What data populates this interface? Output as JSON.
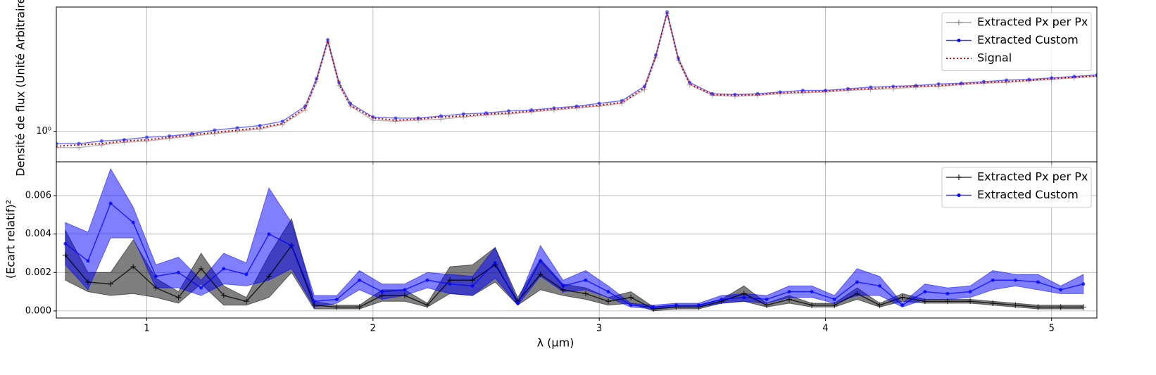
{
  "chart_data": [
    {
      "type": "line",
      "ylabel": "Densité de flux (Unité Arbitraire)",
      "log_y": true,
      "grid": true,
      "legend": "upper right",
      "xlim": [
        0.6,
        5.2
      ],
      "xticks": [
        1,
        2,
        3,
        4,
        5
      ],
      "ylim": [
        0.77,
        2.9
      ],
      "yticks": [
        {
          "value": 1,
          "label": "10⁰"
        }
      ],
      "x": [
        0.6,
        0.7,
        0.8,
        0.9,
        1.0,
        1.1,
        1.2,
        1.3,
        1.4,
        1.5,
        1.6,
        1.7,
        1.75,
        1.8,
        1.85,
        1.9,
        2.0,
        2.1,
        2.2,
        2.3,
        2.4,
        2.5,
        2.6,
        2.7,
        2.8,
        2.9,
        3.0,
        3.1,
        3.2,
        3.25,
        3.3,
        3.35,
        3.4,
        3.5,
        3.6,
        3.7,
        3.8,
        3.9,
        4.0,
        4.1,
        4.2,
        4.3,
        4.4,
        4.5,
        4.6,
        4.7,
        4.8,
        4.9,
        5.0,
        5.1,
        5.2
      ],
      "series": [
        {
          "name": "Extracted Px per Px",
          "color": "#808080",
          "marker": "plus",
          "line": "solid",
          "values": [
            0.87,
            0.87,
            0.89,
            0.91,
            0.92,
            0.94,
            0.96,
            0.98,
            1.0,
            1.02,
            1.06,
            1.2,
            1.53,
            2.15,
            1.48,
            1.24,
            1.1,
            1.09,
            1.1,
            1.11,
            1.13,
            1.15,
            1.16,
            1.18,
            1.2,
            1.22,
            1.24,
            1.27,
            1.43,
            1.88,
            2.74,
            1.83,
            1.49,
            1.36,
            1.35,
            1.36,
            1.38,
            1.39,
            1.4,
            1.42,
            1.43,
            1.44,
            1.46,
            1.47,
            1.49,
            1.51,
            1.52,
            1.54,
            1.56,
            1.58,
            1.6
          ]
        },
        {
          "name": "Extracted Custom",
          "color": "#0000ff",
          "marker": "dot",
          "line": "solid",
          "values": [
            0.9,
            0.9,
            0.92,
            0.93,
            0.95,
            0.96,
            0.98,
            1.01,
            1.03,
            1.05,
            1.09,
            1.24,
            1.57,
            2.19,
            1.52,
            1.27,
            1.13,
            1.12,
            1.12,
            1.14,
            1.16,
            1.17,
            1.19,
            1.2,
            1.22,
            1.24,
            1.27,
            1.3,
            1.47,
            1.92,
            2.78,
            1.87,
            1.52,
            1.38,
            1.37,
            1.38,
            1.4,
            1.42,
            1.42,
            1.44,
            1.46,
            1.47,
            1.48,
            1.5,
            1.51,
            1.53,
            1.55,
            1.56,
            1.58,
            1.6,
            1.62
          ]
        },
        {
          "name": "Signal",
          "color": "#cc0000",
          "marker": "none",
          "line": "dotted",
          "values": [
            0.88,
            0.89,
            0.9,
            0.92,
            0.93,
            0.95,
            0.97,
            0.99,
            1.01,
            1.03,
            1.07,
            1.22,
            1.55,
            2.17,
            1.5,
            1.25,
            1.12,
            1.1,
            1.11,
            1.13,
            1.14,
            1.16,
            1.17,
            1.19,
            1.21,
            1.23,
            1.25,
            1.28,
            1.45,
            1.9,
            2.76,
            1.85,
            1.5,
            1.37,
            1.36,
            1.37,
            1.39,
            1.4,
            1.41,
            1.43,
            1.44,
            1.46,
            1.47,
            1.48,
            1.5,
            1.52,
            1.53,
            1.55,
            1.57,
            1.59,
            1.61
          ]
        }
      ]
    },
    {
      "type": "line",
      "ylabel": "(Ecart relatif)²",
      "xlabel": "λ (µm)",
      "log_y": false,
      "grid": true,
      "legend": "upper right",
      "xlim": [
        0.6,
        5.2
      ],
      "xticks": [
        1,
        2,
        3,
        4,
        5
      ],
      "ylim": [
        -0.00037,
        0.00776
      ],
      "yticks": [
        {
          "value": 0,
          "label": "0.000"
        },
        {
          "value": 0.002,
          "label": "0.002"
        },
        {
          "value": 0.004,
          "label": "0.004"
        },
        {
          "value": 0.006,
          "label": "0.006"
        }
      ],
      "x": [
        0.64,
        0.74,
        0.84,
        0.94,
        1.04,
        1.14,
        1.24,
        1.34,
        1.44,
        1.54,
        1.64,
        1.74,
        1.84,
        1.94,
        2.04,
        2.14,
        2.24,
        2.34,
        2.44,
        2.54,
        2.64,
        2.74,
        2.84,
        2.94,
        3.04,
        3.14,
        3.24,
        3.34,
        3.44,
        3.54,
        3.64,
        3.74,
        3.84,
        3.94,
        4.04,
        4.14,
        4.24,
        4.34,
        4.44,
        4.54,
        4.64,
        4.74,
        4.84,
        4.94,
        5.04,
        5.14
      ],
      "series": [
        {
          "name": "Extracted Px per Px",
          "color": "#000000",
          "marker": "plus",
          "line": "solid",
          "values": [
            0.0029,
            0.0015,
            0.0014,
            0.0023,
            0.0012,
            0.0007,
            0.0022,
            0.0008,
            0.0005,
            0.0018,
            0.0034,
            0.0003,
            0.0002,
            0.0002,
            0.0008,
            0.0008,
            0.0003,
            0.0016,
            0.0016,
            0.0024,
            0.0005,
            0.0019,
            0.0011,
            0.0009,
            0.0005,
            0.0007,
            0.0001,
            0.0002,
            0.0002,
            0.0005,
            0.0009,
            0.0003,
            0.0006,
            0.0003,
            0.0003,
            0.0009,
            0.0003,
            0.0007,
            0.0005,
            0.0005,
            0.0005,
            0.0004,
            0.0003,
            0.0002,
            0.0002,
            0.0002
          ],
          "errors": [
            0.0013,
            0.0005,
            0.0006,
            0.0014,
            0.0005,
            0.0003,
            0.0008,
            0.0005,
            0.0002,
            0.0011,
            0.0014,
            0.0002,
            0.0001,
            0.0001,
            0.0003,
            0.0003,
            0.0001,
            0.0007,
            0.0008,
            0.0009,
            0.0002,
            0.0008,
            0.0003,
            0.0003,
            0.0002,
            0.0003,
            0.0001,
            0.0001,
            0.0001,
            0.0001,
            0.0004,
            0.0001,
            0.0002,
            0.0001,
            0.0001,
            0.0003,
            0.0001,
            0.0002,
            0.0001,
            0.0001,
            0.0001,
            0.0001,
            0.0001,
            0.0001,
            0.0001,
            0.0001
          ]
        },
        {
          "name": "Extracted Custom",
          "color": "#0000ff",
          "marker": "dot",
          "line": "solid",
          "values": [
            0.0035,
            0.0026,
            0.0056,
            0.0046,
            0.0018,
            0.002,
            0.0012,
            0.0022,
            0.0019,
            0.004,
            0.0034,
            0.0005,
            0.0006,
            0.0016,
            0.001,
            0.0011,
            0.0016,
            0.0014,
            0.0013,
            0.0025,
            0.0004,
            0.0026,
            0.0013,
            0.0016,
            0.001,
            0.0003,
            0.0002,
            0.0003,
            0.0003,
            0.0006,
            0.0007,
            0.0006,
            0.001,
            0.001,
            0.0006,
            0.0015,
            0.0013,
            0.0003,
            0.001,
            0.0009,
            0.001,
            0.0016,
            0.0016,
            0.0015,
            0.0011,
            0.0014
          ],
          "errors": [
            0.0011,
            0.0015,
            0.0018,
            0.0008,
            0.0006,
            0.0008,
            0.0004,
            0.0008,
            0.0006,
            0.0024,
            0.0012,
            0.0003,
            0.0002,
            0.0005,
            0.0004,
            0.0003,
            0.0004,
            0.0005,
            0.0005,
            0.0008,
            0.0001,
            0.0008,
            0.0003,
            0.0005,
            0.0003,
            0.0001,
            0.0001,
            0.0001,
            0.0001,
            0.0002,
            0.0002,
            0.0002,
            0.0003,
            0.0003,
            0.0002,
            0.0007,
            0.0005,
            0.0001,
            0.0004,
            0.0003,
            0.0003,
            0.0005,
            0.0003,
            0.0004,
            0.0002,
            0.0005
          ]
        }
      ]
    }
  ]
}
